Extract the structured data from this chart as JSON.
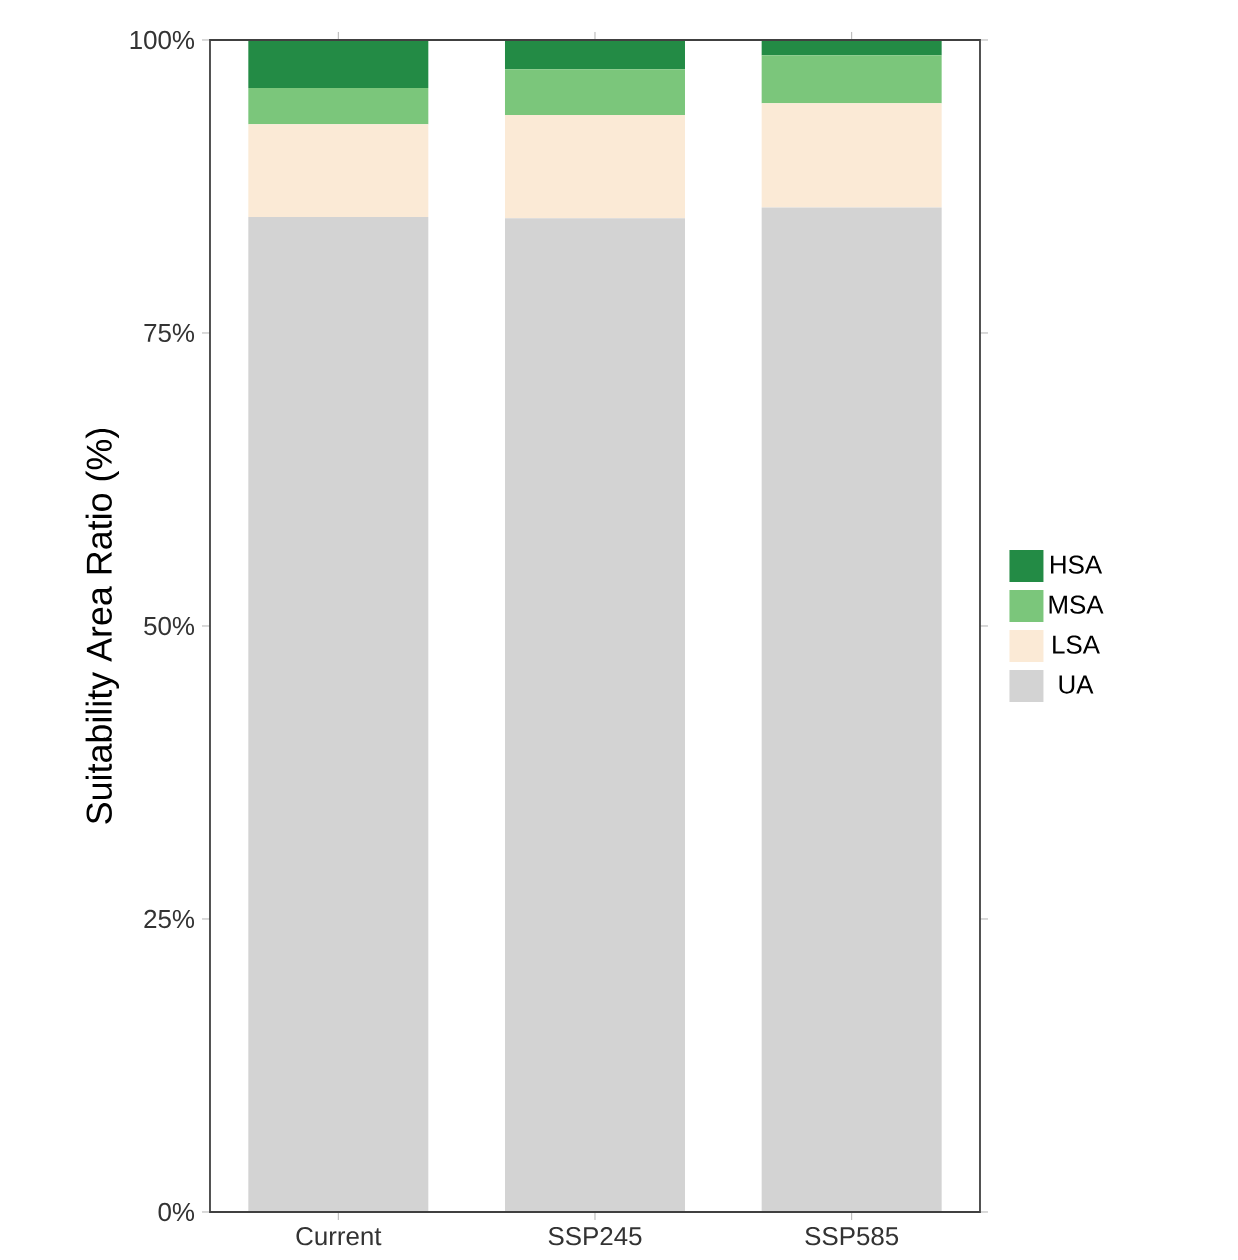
{
  "chart_data": {
    "type": "bar",
    "stacked": true,
    "ylabel": "Suitability Area Ratio (%)",
    "categories": [
      "Current",
      "SSP245",
      "SSP585"
    ],
    "series": [
      {
        "name": "UA",
        "color": "#d3d3d3",
        "values": [
          84.9,
          84.8,
          85.7
        ]
      },
      {
        "name": "LSA",
        "color": "#fbead6",
        "values": [
          7.9,
          8.8,
          8.9
        ]
      },
      {
        "name": "MSA",
        "color": "#7bc67b",
        "values": [
          3.1,
          3.9,
          4.1
        ]
      },
      {
        "name": "HSA",
        "color": "#238b45",
        "values": [
          4.1,
          2.5,
          1.3
        ]
      }
    ],
    "ylim": [
      0,
      100
    ],
    "yticks": [
      {
        "value": 0,
        "label": "0%"
      },
      {
        "value": 25,
        "label": "25%"
      },
      {
        "value": 50,
        "label": "50%"
      },
      {
        "value": 75,
        "label": "75%"
      },
      {
        "value": 100,
        "label": "100%"
      }
    ],
    "legend": "right",
    "grid": false
  }
}
